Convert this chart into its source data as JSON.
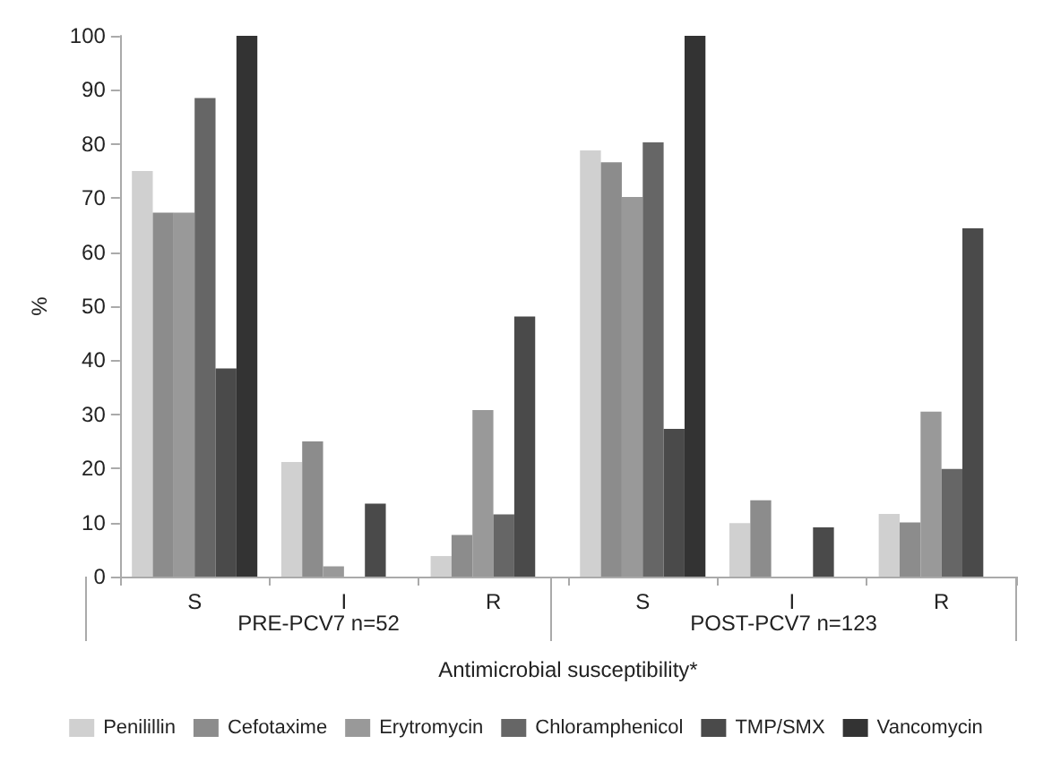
{
  "chart_data": {
    "type": "bar",
    "ylabel": "%",
    "xlabel": "Antimicrobial susceptibility*",
    "categories": [
      "S",
      "I",
      "R",
      "S",
      "I",
      "R"
    ],
    "annotations": [
      "PRE-PCV7 n=52",
      "POST-PCV7 n=123"
    ],
    "ylim": [
      0,
      100
    ],
    "yticks": [
      0,
      10,
      20,
      30,
      40,
      50,
      60,
      70,
      80,
      90,
      100
    ],
    "legend": "bottom",
    "series": [
      {
        "name": "Penilillin",
        "color": "#d0d0d0",
        "values": [
          75,
          21.2,
          3.8,
          78.8,
          9.9,
          11.6
        ]
      },
      {
        "name": "Cefotaxime",
        "color": "#8c8c8c",
        "values": [
          67.3,
          25,
          7.7,
          76.6,
          14.1,
          10
        ]
      },
      {
        "name": "Erytromycin",
        "color": "#999999",
        "values": [
          67.3,
          1.9,
          30.8,
          70.2,
          0,
          30.5
        ]
      },
      {
        "name": "Chloramphenicol",
        "color": "#666666",
        "values": [
          88.5,
          0,
          11.5,
          80.3,
          0,
          19.9
        ]
      },
      {
        "name": "TMP/SMX",
        "color": "#4a4a4a",
        "values": [
          38.5,
          13.5,
          48.1,
          27.3,
          9.1,
          64.4
        ]
      },
      {
        "name": "Vancomycin",
        "color": "#333333",
        "values": [
          100,
          0,
          0,
          100,
          0,
          0
        ]
      }
    ]
  }
}
